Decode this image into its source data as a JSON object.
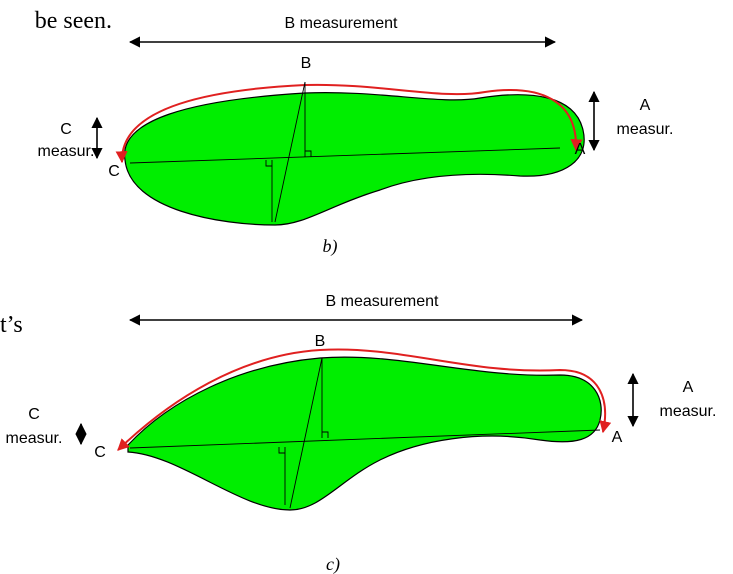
{
  "text_fragments": [
    "be seen.",
    "t’s"
  ],
  "panels": [
    {
      "caption": "b)",
      "span_label": "B measurement",
      "top_point": "B",
      "left_point": "C",
      "right_point": "A",
      "left_measure": [
        "C",
        "measur."
      ],
      "right_measure": [
        "A",
        "measur."
      ]
    },
    {
      "caption": "c)",
      "span_label": "B measurement",
      "top_point": "B",
      "left_point": "C",
      "right_point": "A",
      "left_measure": [
        "C",
        "measur."
      ],
      "right_measure": [
        "A",
        "measur."
      ]
    }
  ]
}
